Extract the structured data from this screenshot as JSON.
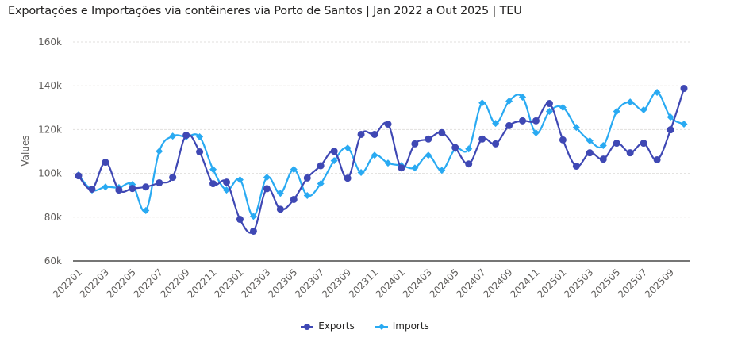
{
  "chart_data": {
    "type": "line",
    "title": "Exportações e Importações via contêineres via Porto de Santos | Jan 2022 a Out 2025 | TEU",
    "xlabel": "",
    "ylabel": "Values",
    "ylim": [
      60000,
      160000
    ],
    "yticks": [
      60000,
      80000,
      100000,
      120000,
      140000,
      160000
    ],
    "ytick_labels": [
      "60k",
      "80k",
      "100k",
      "120k",
      "140k",
      "160k"
    ],
    "grid": "horizontal dashed",
    "legend_position": "bottom-center",
    "x": [
      "202201",
      "202202",
      "202203",
      "202204",
      "202205",
      "202206",
      "202207",
      "202208",
      "202209",
      "202210",
      "202211",
      "202212",
      "202301",
      "202302",
      "202303",
      "202304",
      "202305",
      "202306",
      "202307",
      "202308",
      "202309",
      "202310",
      "202311",
      "202312",
      "202401",
      "202402",
      "202403",
      "202404",
      "202405",
      "202406",
      "202407",
      "202408",
      "202409",
      "202410",
      "202411",
      "202412",
      "202501",
      "202502",
      "202503",
      "202504",
      "202505",
      "202506",
      "202507",
      "202508",
      "202509",
      "202510"
    ],
    "xtick_labels": [
      "202201",
      "202203",
      "202205",
      "202207",
      "202209",
      "202211",
      "202301",
      "202303",
      "202305",
      "202307",
      "202309",
      "202311",
      "202401",
      "202403",
      "202405",
      "202407",
      "202409",
      "202411",
      "202501",
      "202503",
      "202505",
      "202507",
      "202509"
    ],
    "series": [
      {
        "name": "Exports",
        "color": "#3f48b4",
        "marker": "circle",
        "values": [
          98900,
          92800,
          105100,
          92400,
          93100,
          93800,
          95700,
          98200,
          117400,
          109800,
          95300,
          96000,
          79000,
          73600,
          93000,
          83600,
          88100,
          97900,
          103500,
          110100,
          97800,
          117800,
          117800,
          122500,
          102500,
          113500,
          115700,
          118600,
          111800,
          104300,
          115700,
          113500,
          121800,
          124000,
          124000,
          131900,
          115300,
          103300,
          109400,
          106500,
          113800,
          109400,
          113800,
          106200,
          119900,
          138800
        ]
      },
      {
        "name": "Imports",
        "color": "#29aaf2",
        "marker": "diamond",
        "values": [
          99300,
          92400,
          93800,
          93500,
          94900,
          83000,
          110100,
          117000,
          116700,
          116700,
          101800,
          92400,
          97100,
          80400,
          98200,
          90900,
          101800,
          89900,
          95300,
          105800,
          111600,
          100400,
          108300,
          104700,
          103600,
          102500,
          108300,
          101400,
          111200,
          111200,
          132200,
          122800,
          133000,
          134800,
          118500,
          128300,
          130100,
          121000,
          114900,
          112700,
          128300,
          132600,
          129000,
          137000,
          125700,
          122500
        ]
      }
    ]
  }
}
